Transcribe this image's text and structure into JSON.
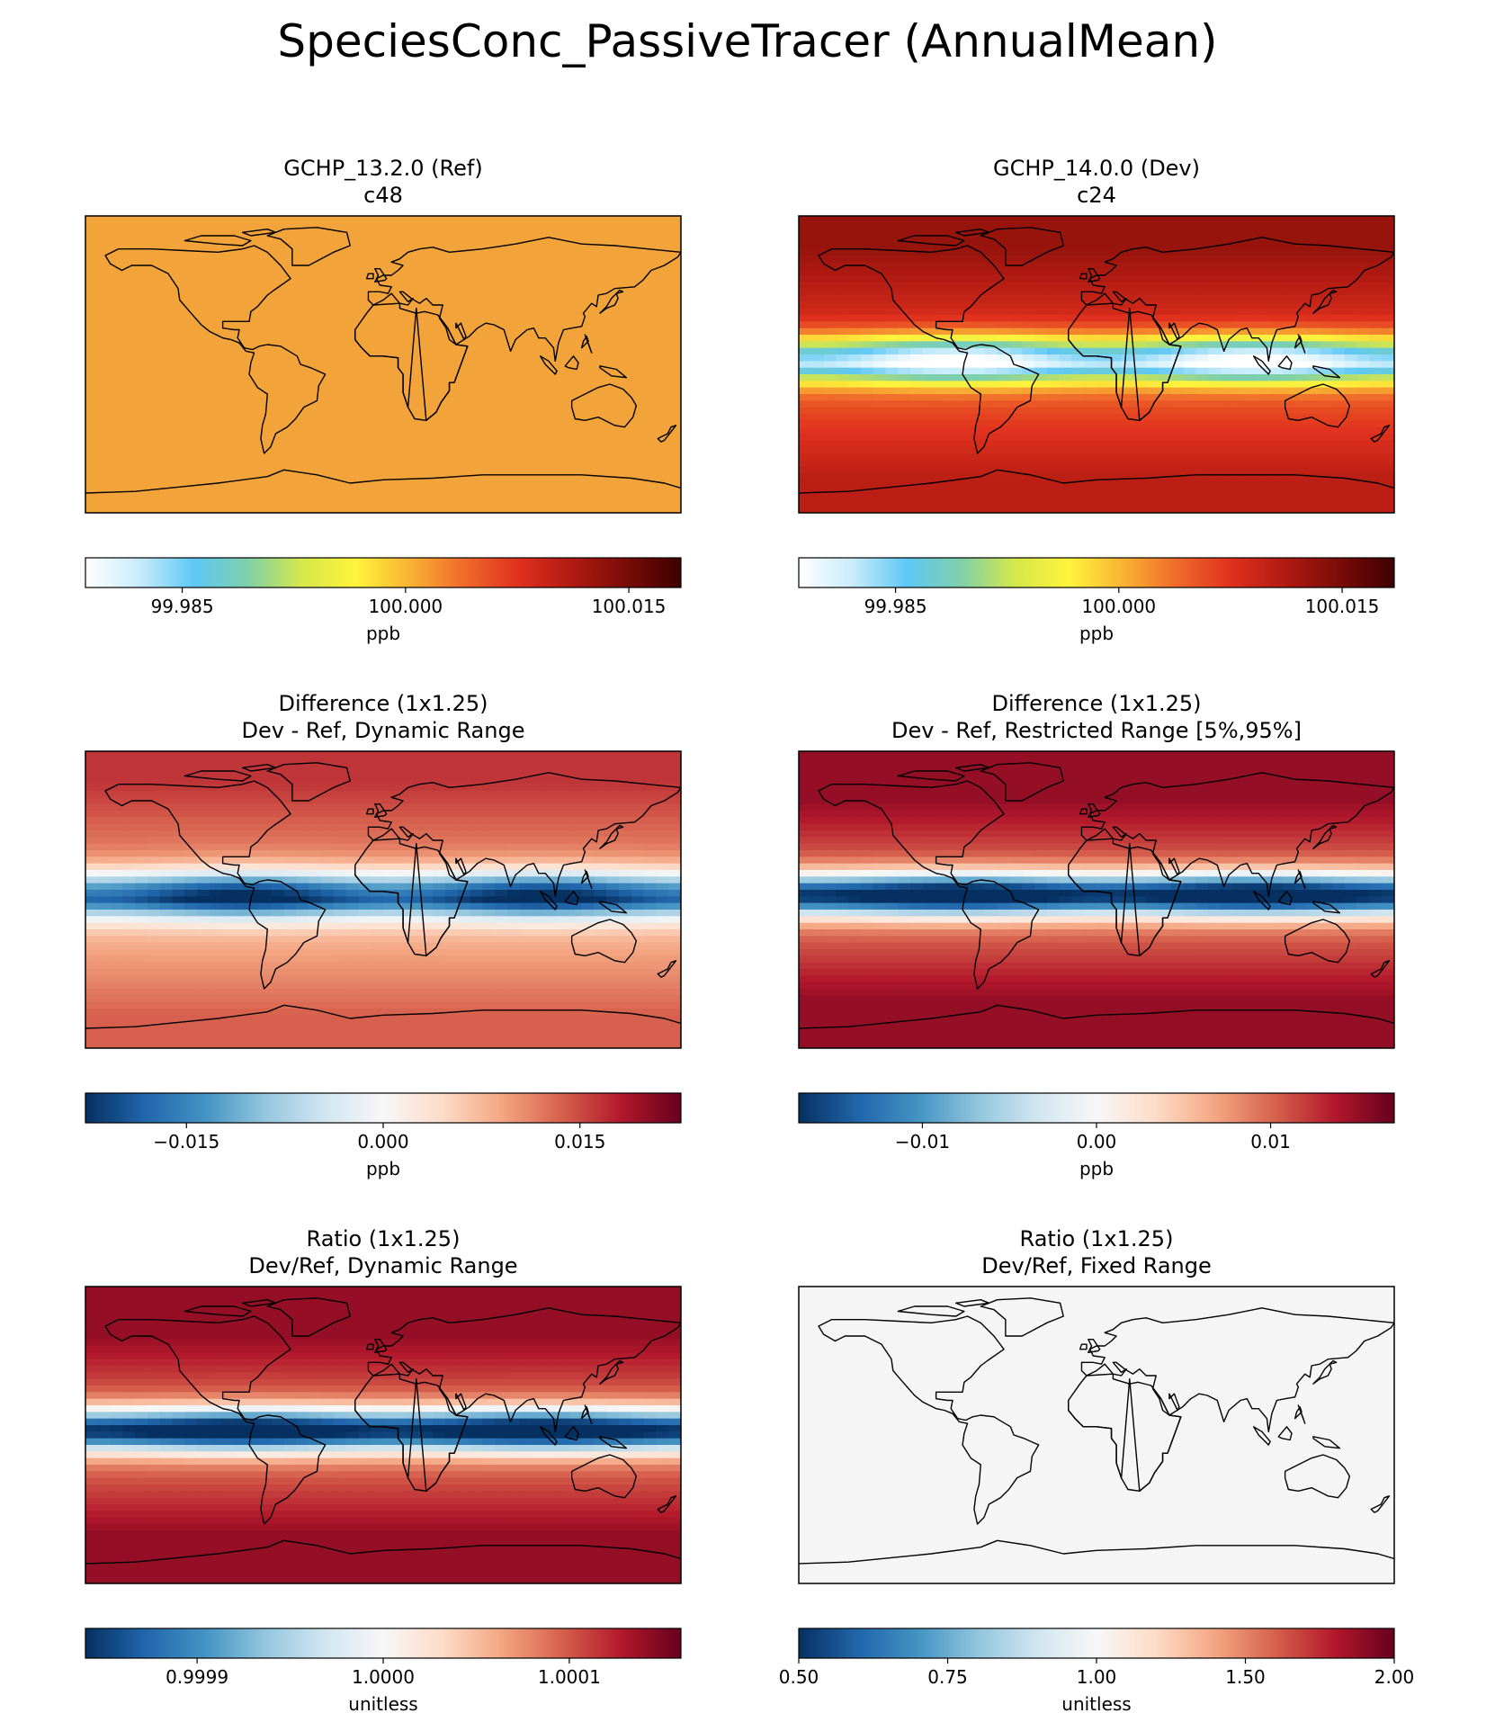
{
  "figure_title": "SpeciesConc_PassiveTracer (AnnualMean)",
  "colors": {
    "ref_fill": "#f2a33a",
    "ratio_fixed_fill": "#f5f5f5",
    "coastline": "#000000",
    "colormap_warm": [
      "#ffffff",
      "#c8ecfa",
      "#5ec8f5",
      "#7fd0a8",
      "#d6e84a",
      "#fff33b",
      "#f9b233",
      "#f06a2a",
      "#e0301e",
      "#b01a12",
      "#7a0c08",
      "#3d0000"
    ],
    "colormap_diverging": [
      "#053061",
      "#2166ac",
      "#4393c3",
      "#92c5de",
      "#d1e5f0",
      "#f7f7f7",
      "#fddbc7",
      "#f4a582",
      "#d6604d",
      "#b2182b",
      "#67001f"
    ]
  },
  "chart_data": [
    {
      "type": "heatmap",
      "title": "GCHP_13.2.0 (Ref)",
      "subtitle": "c48",
      "field": "uniform",
      "colormap": "warm",
      "colorbar": {
        "ticks": [
          "99.985",
          "100.000",
          "100.015"
        ],
        "tick_values": [
          99.985,
          100.0,
          100.015
        ],
        "range": [
          99.9785,
          100.0185
        ],
        "label": "ppb"
      }
    },
    {
      "type": "heatmap",
      "title": "GCHP_14.0.0 (Dev)",
      "subtitle": "c24",
      "field": "tropical_minimum",
      "colormap": "warm",
      "colorbar": {
        "ticks": [
          "99.985",
          "100.000",
          "100.015"
        ],
        "tick_values": [
          99.985,
          100.0,
          100.015
        ],
        "range": [
          99.9785,
          100.0185
        ],
        "label": "ppb"
      }
    },
    {
      "type": "heatmap",
      "title": "Difference (1x1.25)",
      "subtitle": "Dev - Ref, Dynamic Range",
      "field": "tropical_minimum",
      "colormap": "diverging",
      "colorbar": {
        "ticks": [
          "−0.015",
          "0.000",
          "0.015"
        ],
        "tick_values": [
          -0.015,
          0.0,
          0.015
        ],
        "range": [
          -0.0227,
          0.0227
        ],
        "label": "ppb"
      }
    },
    {
      "type": "heatmap",
      "title": "Difference (1x1.25)",
      "subtitle": "Dev - Ref, Restricted Range [5%,95%]",
      "field": "tropical_minimum_strong",
      "colormap": "diverging",
      "colorbar": {
        "ticks": [
          "−0.01",
          "0.00",
          "0.01"
        ],
        "tick_values": [
          -0.01,
          0.0,
          0.01
        ],
        "range": [
          -0.0171,
          0.0171
        ],
        "label": "ppb"
      }
    },
    {
      "type": "heatmap",
      "title": "Ratio (1x1.25)",
      "subtitle": "Dev/Ref, Dynamic Range",
      "field": "tropical_minimum_strong",
      "colormap": "diverging",
      "colorbar": {
        "ticks": [
          "0.9999",
          "1.0000",
          "1.0001"
        ],
        "tick_values": [
          0.9999,
          1.0,
          1.0001
        ],
        "range": [
          0.99984,
          1.00016
        ],
        "label": "unitless"
      }
    },
    {
      "type": "heatmap",
      "title": "Ratio (1x1.25)",
      "subtitle": "Dev/Ref, Fixed Range",
      "field": "uniform",
      "colormap": "diverging",
      "colorbar": {
        "ticks": [
          "0.50",
          "0.75",
          "1.00",
          "1.50",
          "2.00"
        ],
        "tick_values": [
          0.5,
          0.75,
          1.0,
          1.5,
          2.0
        ],
        "range": [
          0.5,
          2.0
        ],
        "label": "unitless"
      }
    }
  ]
}
